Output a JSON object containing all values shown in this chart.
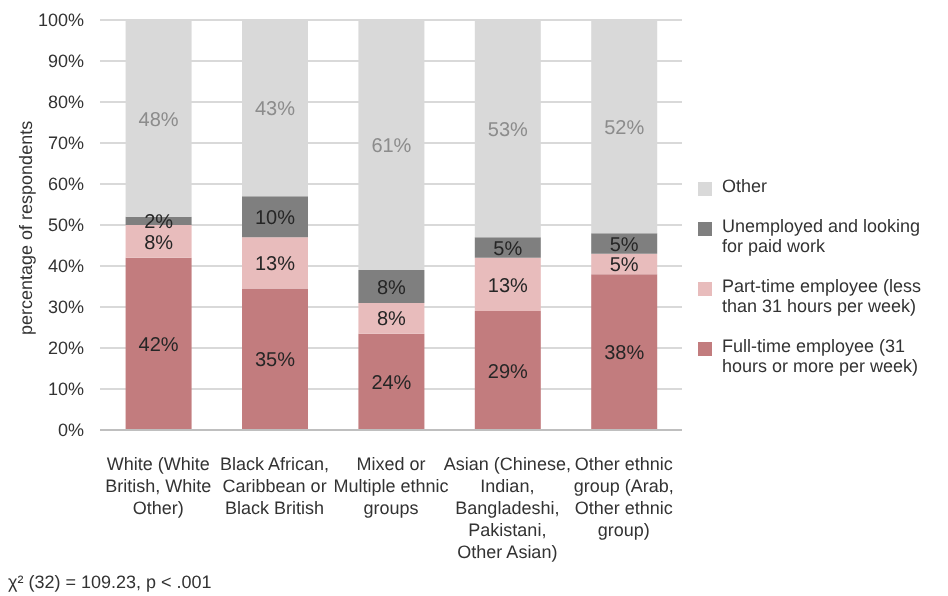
{
  "chart_data": {
    "type": "bar",
    "stacked": true,
    "ylabel": "percentage of respondents",
    "categories": [
      "White (White British, White Other)",
      "Black African, Caribbean or Black British",
      "Mixed or Multiple ethnic groups",
      "Asian (Chinese, Indian, Bangladeshi, Pakistani, Other Asian)",
      "Other ethnic group (Arab, Other ethnic group)"
    ],
    "series": [
      {
        "name": "Full-time employee (31 hours or more per week)",
        "color": "#c27c7e",
        "values": [
          42,
          34.5,
          23.5,
          29,
          38
        ],
        "value_labels": [
          "42%",
          "35%",
          "24%",
          "29%",
          "38%"
        ]
      },
      {
        "name": "Part-time employee (less than 31 hours per week)",
        "color": "#e8bcbc",
        "values": [
          8,
          12.5,
          7.5,
          13,
          5
        ],
        "value_labels": [
          "8%",
          "13%",
          "8%",
          "13%",
          "5%"
        ]
      },
      {
        "name": "Unemployed and looking for paid work",
        "color": "#7f7f7f",
        "values": [
          2,
          10,
          8,
          5,
          5
        ],
        "value_labels": [
          "2%",
          "10%",
          "8%",
          "5%",
          "5%"
        ]
      },
      {
        "name": "Other",
        "color": "#d9d9d9",
        "values": [
          48,
          43,
          61,
          53,
          52
        ],
        "value_labels": [
          "48%",
          "43%",
          "61%",
          "53%",
          "52%"
        ]
      }
    ],
    "ylim": [
      0,
      100
    ],
    "yticks": [
      {
        "value": 0,
        "label": "0%"
      },
      {
        "value": 10,
        "label": "10%"
      },
      {
        "value": 20,
        "label": "20%"
      },
      {
        "value": 30,
        "label": "30%"
      },
      {
        "value": 40,
        "label": "40%"
      },
      {
        "value": 50,
        "label": "50%"
      },
      {
        "value": 60,
        "label": "60%"
      },
      {
        "value": 70,
        "label": "70%"
      },
      {
        "value": 80,
        "label": "80%"
      },
      {
        "value": 90,
        "label": "90%"
      },
      {
        "value": 100,
        "label": "100%"
      }
    ],
    "grid": "y",
    "legend": "right",
    "annotations": [
      "χ² (32) = 109.23, p < .001"
    ]
  }
}
